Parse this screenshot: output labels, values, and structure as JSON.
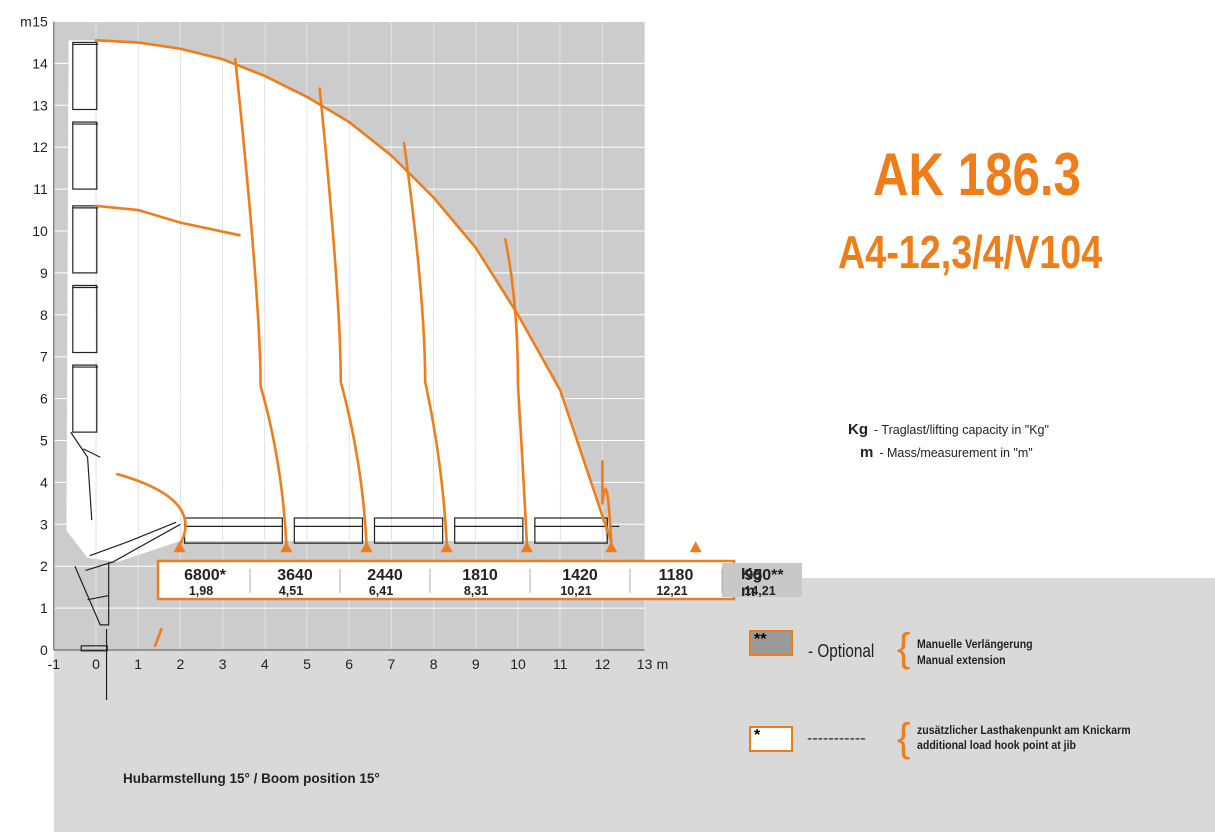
{
  "title": "AK 186.3",
  "subtitle": "A4-12,3/4/V104",
  "legend": {
    "kg_symbol": "Kg",
    "kg_text": "- Traglast/lifting capacity  in \"Kg\"",
    "m_symbol": "m",
    "m_text": "- Mass/measurement  in \"m\""
  },
  "optional": {
    "marker": "**",
    "label": "- Optional",
    "line1": "Manuelle Verlängerung",
    "line2": "Manual extension"
  },
  "jib": {
    "marker": "*",
    "dashes": "-----------",
    "line1": "zusätzlicher Lasthakenpunkt am Knickarm",
    "line2": "additional load hook point at jib"
  },
  "boom_position": "Hubarmstellung 15° / Boom position 15°",
  "colors": {
    "accent": "#ef7d1a",
    "grid_bg": "#cccccc",
    "grid_line": "#ffffff",
    "lower_bg": "#d9d9d9"
  },
  "chart_data": {
    "type": "line",
    "axes": {
      "x_ticks": [
        "-1",
        "0",
        "1",
        "2",
        "3",
        "4",
        "5",
        "6",
        "7",
        "8",
        "9",
        "10",
        "11",
        "12",
        "13"
      ],
      "x_unit": "m",
      "y_ticks": [
        "0",
        "1",
        "2",
        "3",
        "4",
        "5",
        "6",
        "7",
        "8",
        "9",
        "10",
        "11",
        "12",
        "13",
        "14",
        "15"
      ],
      "y_unit": "m",
      "xlim": [
        -1,
        13
      ],
      "ylim": [
        0,
        15
      ],
      "grid": true
    },
    "loads": [
      {
        "kg": "6800*",
        "m": "1,98",
        "x": 1.98
      },
      {
        "kg": "3640",
        "m": "4,51",
        "x": 4.51
      },
      {
        "kg": "2440",
        "m": "6,41",
        "x": 6.41
      },
      {
        "kg": "1810",
        "m": "8,31",
        "x": 8.31
      },
      {
        "kg": "1420",
        "m": "10,21",
        "x": 10.21
      },
      {
        "kg": "1180",
        "m": "12,21",
        "x": 12.21
      },
      {
        "kg": "950**",
        "m": "14,21",
        "x": 14.21,
        "optional": true
      }
    ],
    "table_units": {
      "kg": "Kg",
      "m": "m"
    },
    "envelope": [
      [
        0,
        14.55
      ],
      [
        1,
        14.5
      ],
      [
        2,
        14.35
      ],
      [
        3,
        14.1
      ],
      [
        4,
        13.7
      ],
      [
        5,
        13.2
      ],
      [
        6,
        12.6
      ],
      [
        7,
        11.8
      ],
      [
        8,
        10.8
      ],
      [
        9,
        9.6
      ],
      [
        10,
        8.0
      ],
      [
        11,
        6.2
      ],
      [
        12,
        3.2
      ]
    ],
    "inner_arc": [
      [
        0,
        10.6
      ],
      [
        1,
        10.5
      ],
      [
        2,
        10.2
      ],
      [
        3.4,
        9.9
      ]
    ],
    "lines": [
      {
        "x": 4.51,
        "top": [
          3.3,
          14.1
        ],
        "bend": [
          3.9,
          6.3
        ]
      },
      {
        "x": 6.41,
        "top": [
          5.3,
          13.4
        ],
        "bend": [
          5.8,
          6.4
        ]
      },
      {
        "x": 8.31,
        "top": [
          7.3,
          12.1
        ],
        "bend": [
          7.8,
          6.4
        ]
      },
      {
        "x": 10.21,
        "top": [
          9.7,
          9.8
        ],
        "bend": [
          10.0,
          6.3
        ]
      },
      {
        "x": 12.21,
        "top": [
          12.0,
          3.5
        ],
        "bend": [
          12.0,
          3.5
        ]
      }
    ]
  }
}
